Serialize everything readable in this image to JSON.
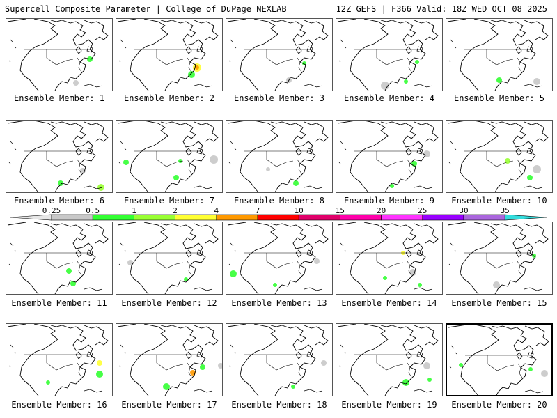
{
  "header": {
    "title": "Supercell Composite Parameter | College of DuPage NEXLAB",
    "run_info": "12Z GEFS | F366 Valid: 18Z WED OCT 08 2025"
  },
  "colorbar": {
    "ticks": [
      "0.25",
      "0.5",
      "1",
      "2",
      "4",
      "7",
      "10",
      "15",
      "20",
      "25",
      "30",
      "35"
    ],
    "colors": [
      "#e6e6e6",
      "#c8c8c8",
      "#33ff33",
      "#99ff33",
      "#ffff33",
      "#ff9900",
      "#ff0000",
      "#e0006a",
      "#ff00aa",
      "#ff33ff",
      "#9900ff",
      "#aa66dd",
      "#33dddd"
    ]
  },
  "members": [
    {
      "label": "Ensemble Member: 1"
    },
    {
      "label": "Ensemble Member: 2"
    },
    {
      "label": "Ensemble Member: 3"
    },
    {
      "label": "Ensemble Member: 4"
    },
    {
      "label": "Ensemble Member: 5"
    },
    {
      "label": "Ensemble Member: 6"
    },
    {
      "label": "Ensemble Member: 7"
    },
    {
      "label": "Ensemble Member: 8"
    },
    {
      "label": "Ensemble Member: 9"
    },
    {
      "label": "Ensemble Member: 10"
    },
    {
      "label": "Ensemble Member: 11"
    },
    {
      "label": "Ensemble Member: 12"
    },
    {
      "label": "Ensemble Member: 13"
    },
    {
      "label": "Ensemble Member: 14"
    },
    {
      "label": "Ensemble Member: 15"
    },
    {
      "label": "Ensemble Member: 16"
    },
    {
      "label": "Ensemble Member: 17"
    },
    {
      "label": "Ensemble Member: 18"
    },
    {
      "label": "Ensemble Member: 19"
    },
    {
      "label": "Ensemble Member: 20"
    }
  ]
}
